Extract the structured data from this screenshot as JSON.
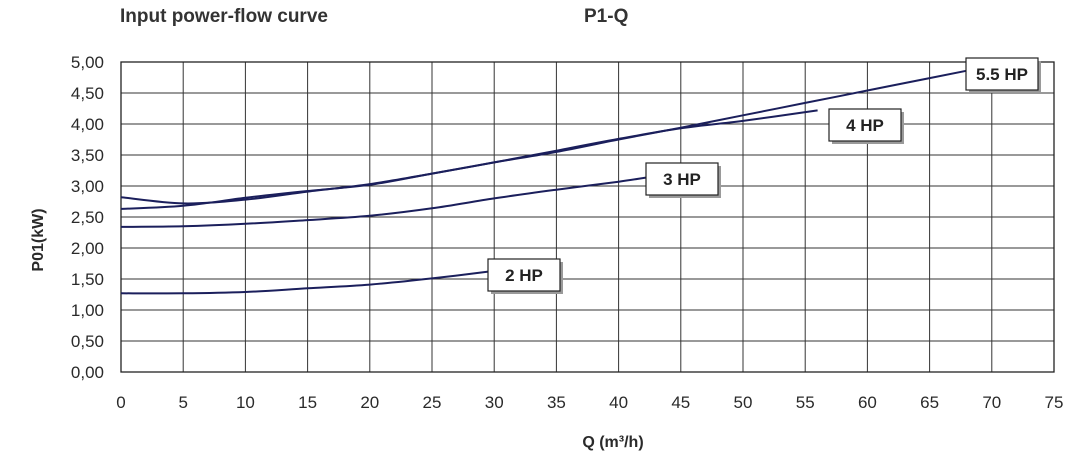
{
  "chart_data": {
    "type": "line",
    "title": "Input power-flow curve",
    "subtitle": "P1-Q",
    "xlabel": "Q (m³/h)",
    "ylabel": "P01(kW)",
    "xlim": [
      0,
      75
    ],
    "ylim": [
      0,
      5
    ],
    "x_ticks": [
      0,
      5,
      10,
      15,
      20,
      25,
      30,
      35,
      40,
      45,
      50,
      55,
      60,
      65,
      70,
      75
    ],
    "x_tick_labels": [
      "0",
      "5",
      "10",
      "15",
      "20",
      "25",
      "30",
      "35",
      "40",
      "45",
      "50",
      "55",
      "60",
      "65",
      "70",
      "75"
    ],
    "y_ticks": [
      0,
      0.5,
      1,
      1.5,
      2,
      2.5,
      3,
      3.5,
      4,
      4.5,
      5
    ],
    "y_tick_labels": [
      "0,00",
      "0,50",
      "1,00",
      "1,50",
      "2,00",
      "2,50",
      "3,00",
      "3,50",
      "4,00",
      "4,50",
      "5,00"
    ],
    "grid": true,
    "line_color": "#1b1f5c",
    "series": [
      {
        "name": "2 HP",
        "x": [
          0,
          5,
          10,
          15,
          20,
          25,
          30
        ],
        "y": [
          1.27,
          1.27,
          1.29,
          1.35,
          1.41,
          1.51,
          1.63
        ]
      },
      {
        "name": "3 HP",
        "x": [
          0,
          5,
          10,
          15,
          20,
          25,
          30,
          35,
          40,
          43
        ],
        "y": [
          2.34,
          2.35,
          2.39,
          2.45,
          2.52,
          2.64,
          2.8,
          2.94,
          3.07,
          3.16
        ]
      },
      {
        "name": "4 HP",
        "x": [
          0,
          5,
          10,
          15,
          20,
          25,
          30,
          35,
          40,
          45,
          50,
          56
        ],
        "y": [
          2.82,
          2.72,
          2.78,
          2.91,
          3.03,
          3.2,
          3.38,
          3.57,
          3.76,
          3.93,
          4.05,
          4.22
        ]
      },
      {
        "name": "5.5 HP",
        "x": [
          0,
          5,
          10,
          15,
          20,
          25,
          30,
          35,
          40,
          45,
          50,
          55,
          60,
          65,
          68
        ],
        "y": [
          2.63,
          2.68,
          2.81,
          2.92,
          3.02,
          3.2,
          3.38,
          3.55,
          3.75,
          3.94,
          4.14,
          4.34,
          4.54,
          4.74,
          4.86
        ]
      }
    ]
  }
}
